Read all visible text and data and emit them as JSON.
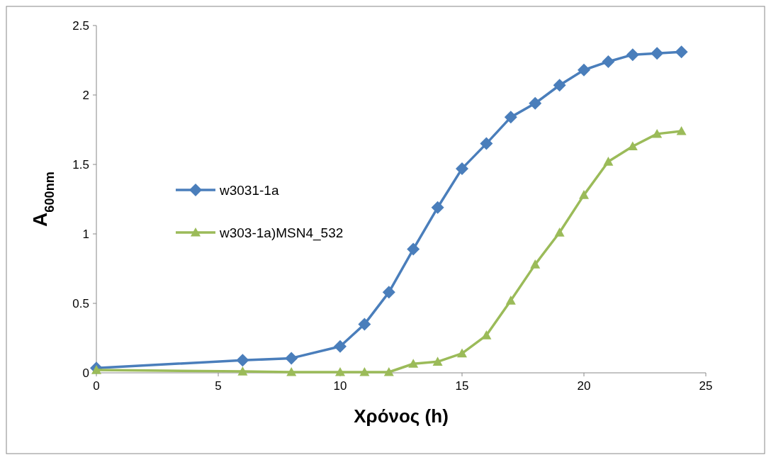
{
  "chart_data": {
    "type": "line",
    "xlabel": "Χρόνος (h)",
    "ylabel": "A$_{600nm}$",
    "xlim": [
      0,
      25
    ],
    "xticks": [
      0,
      5,
      10,
      15,
      20,
      25
    ],
    "ylim": [
      0,
      2.5
    ],
    "yticks": [
      0,
      0.5,
      1,
      1.5,
      2,
      2.5
    ],
    "grid": false,
    "legend": "left",
    "line_style": "solid",
    "series": [
      {
        "name": "w3031-1a",
        "color": "#4a7ebb",
        "marker": "diamond",
        "x": [
          0,
          6,
          8,
          10,
          11,
          12,
          13,
          14,
          15,
          16,
          17,
          18,
          19,
          20,
          21,
          22,
          23,
          24
        ],
        "values": [
          0.035,
          0.09,
          0.105,
          0.19,
          0.35,
          0.58,
          0.89,
          1.19,
          1.47,
          1.65,
          1.84,
          1.94,
          2.07,
          2.18,
          2.24,
          2.29,
          2.3,
          2.31
        ]
      },
      {
        "name": "w303-1a)MSN4_532",
        "color": "#9bbb59",
        "marker": "triangle",
        "x": [
          0,
          6,
          8,
          10,
          11,
          12,
          13,
          14,
          15,
          16,
          17,
          18,
          19,
          20,
          21,
          22,
          23,
          24
        ],
        "values": [
          0.02,
          0.01,
          0.005,
          0.005,
          0.005,
          0.005,
          0.065,
          0.08,
          0.14,
          0.27,
          0.52,
          0.78,
          1.01,
          1.28,
          1.52,
          1.63,
          1.72,
          1.74
        ]
      }
    ]
  }
}
